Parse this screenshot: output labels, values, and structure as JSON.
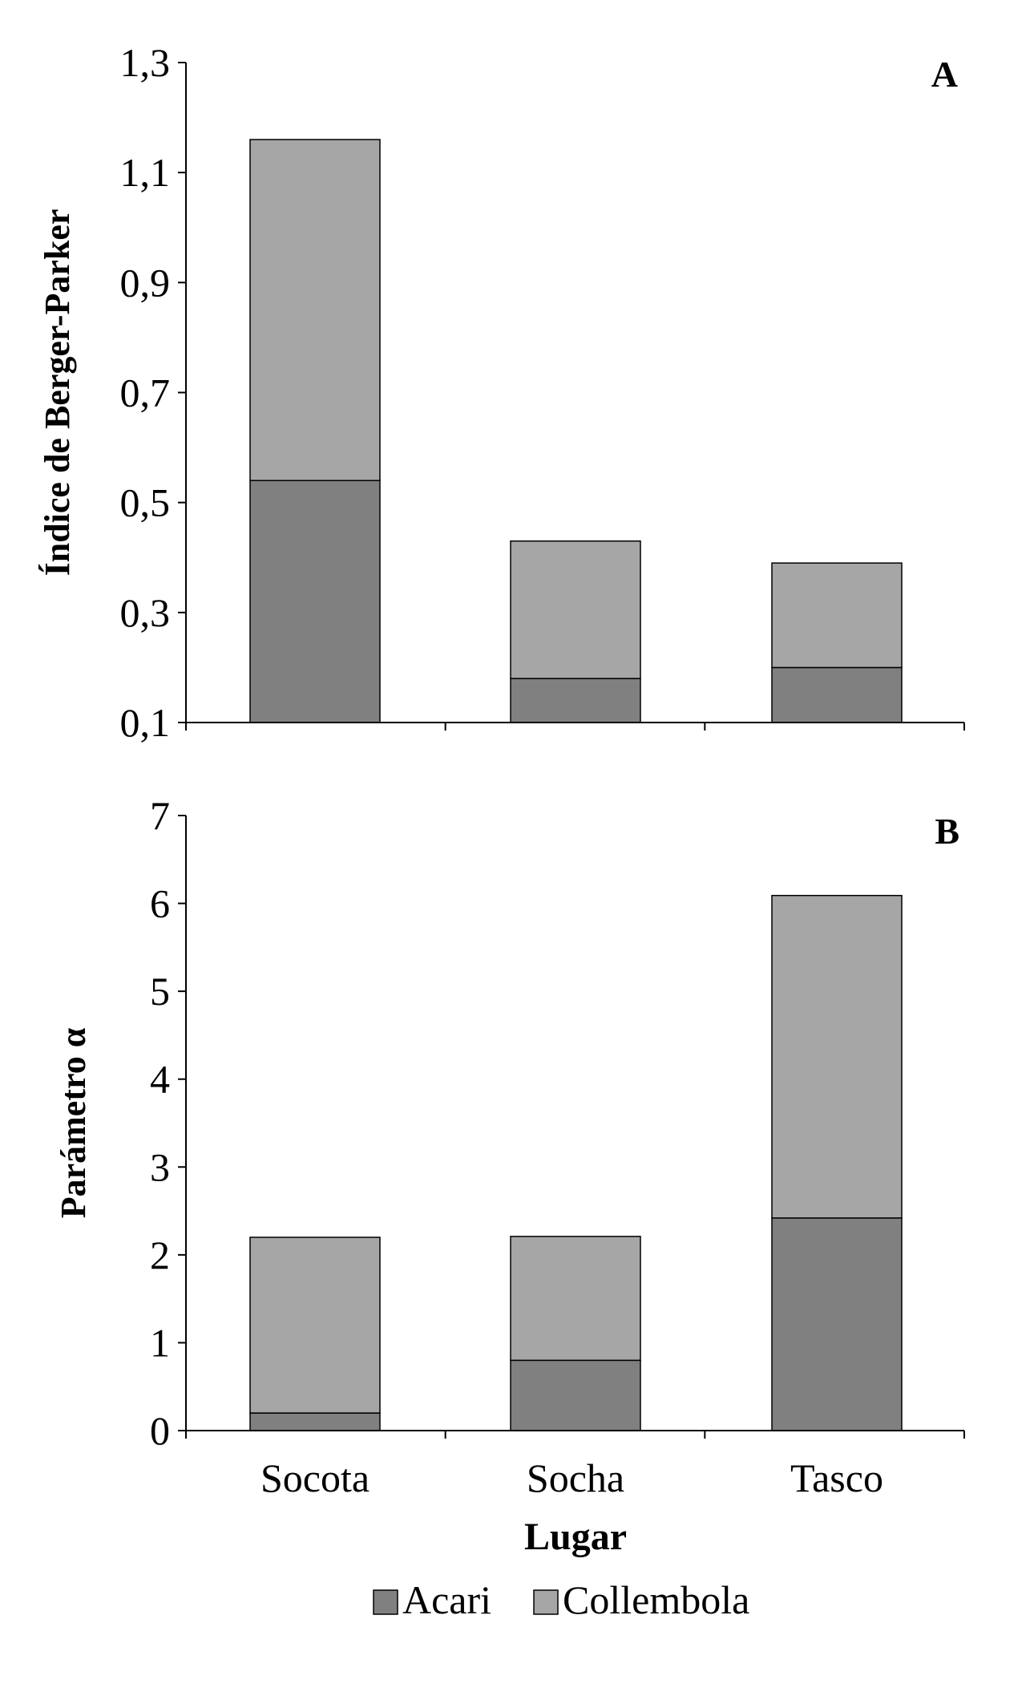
{
  "legend": {
    "acari": "Acari",
    "collembola": "Collembola"
  },
  "colors": {
    "acari": "#808080",
    "collembola": "#a6a6a6"
  },
  "chart_data": [
    {
      "type": "bar",
      "stacked": true,
      "panel_label": "A",
      "categories": [
        "Socota",
        "Socha",
        "Tasco"
      ],
      "series": [
        {
          "name": "Acari",
          "values": [
            0.54,
            0.18,
            0.2
          ]
        },
        {
          "name": "Collembola",
          "values": [
            0.62,
            0.25,
            0.19
          ]
        }
      ],
      "ylabel": "Índice de Berger-Parker",
      "xlabel": "",
      "ylim": [
        0.1,
        1.3
      ],
      "yticks": [
        "0,1",
        "0,3",
        "0,5",
        "0,7",
        "0,9",
        "1,1",
        "1,3"
      ],
      "show_category_labels": false,
      "grid": false
    },
    {
      "type": "bar",
      "stacked": true,
      "panel_label": "B",
      "categories": [
        "Socota",
        "Socha",
        "Tasco"
      ],
      "series": [
        {
          "name": "Acari",
          "values": [
            0.2,
            0.8,
            2.42
          ]
        },
        {
          "name": "Collembola",
          "values": [
            2.0,
            1.41,
            3.67
          ]
        }
      ],
      "ylabel": "Parámetro α",
      "xlabel": "Lugar",
      "ylim": [
        0,
        7
      ],
      "yticks": [
        "0",
        "1",
        "2",
        "3",
        "4",
        "5",
        "6",
        "7"
      ],
      "show_category_labels": true,
      "grid": false
    }
  ]
}
